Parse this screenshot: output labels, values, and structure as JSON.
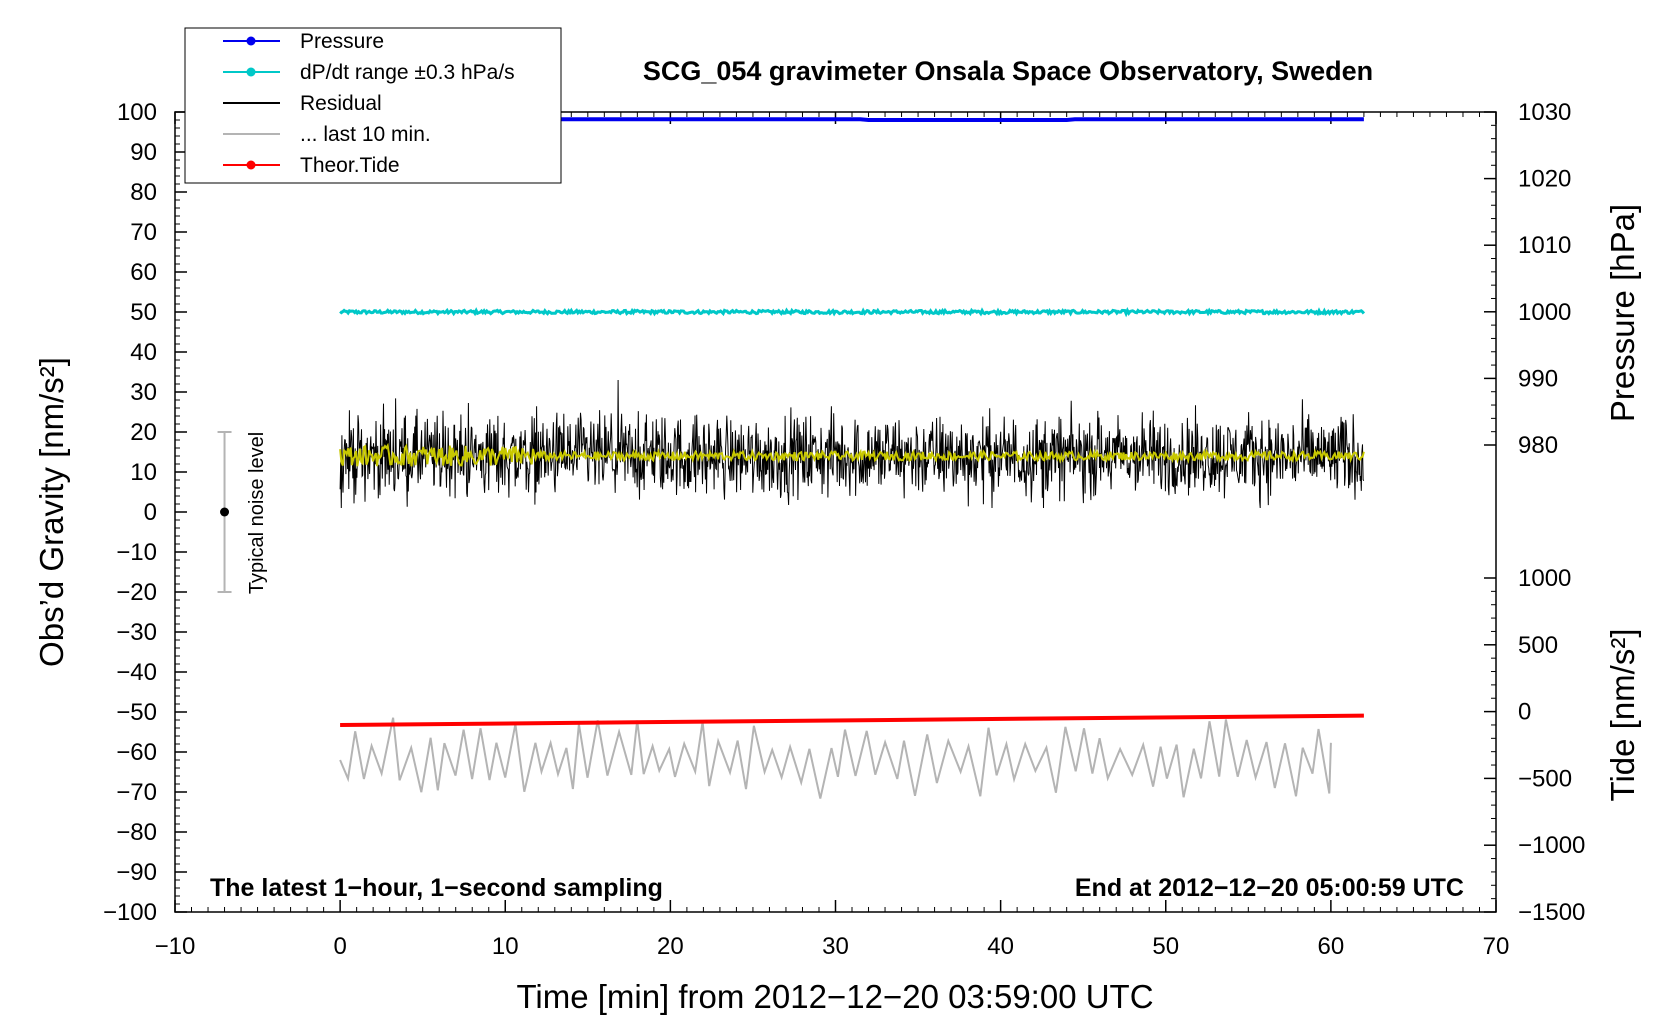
{
  "chart_data": {
    "type": "line",
    "title": "SCG_054 gravimeter Onsala Space Observatory, Sweden",
    "xlabel": "Time [min] from 2012−12−20 03:59:00 UTC",
    "ylabel": "Obs’d Gravity [nm/s²]",
    "y2_upper_label": "Pressure [hPa]",
    "y2_lower_label": "Tide [nm/s²]",
    "xlim": [
      -10,
      70
    ],
    "ylim": [
      -100,
      100
    ],
    "pressure_axis_range": [
      980,
      1030
    ],
    "tide_axis_range": [
      -1500,
      1000
    ],
    "x_ticks": [
      "−10",
      "0",
      "10",
      "20",
      "30",
      "40",
      "50",
      "60",
      "70"
    ],
    "y_ticks": [
      "100",
      "90",
      "80",
      "70",
      "60",
      "50",
      "40",
      "30",
      "20",
      "10",
      "0",
      "−10",
      "−20",
      "−30",
      "−40",
      "−50",
      "−60",
      "−70",
      "−80",
      "−90",
      "−100"
    ],
    "pressure_ticks": [
      "1030",
      "1020",
      "1010",
      "1000",
      "990",
      "980"
    ],
    "tide_ticks": [
      "1000",
      "500",
      "0",
      "−500",
      "−1000",
      "−1500"
    ],
    "legend": {
      "placement": "top-left",
      "entries": [
        {
          "label": "Pressure",
          "color": "#0000ee",
          "marker": true
        },
        {
          "label": "dP/dt range ±0.3 hPa/s",
          "color": "#00c8c8",
          "marker": true
        },
        {
          "label": "Residual",
          "color": "#000000",
          "marker": false
        },
        {
          "label": "... last 10 min.",
          "color": "#b4b4b4",
          "marker": false
        },
        {
          "label": "Theor.Tide",
          "color": "#ff0000",
          "marker": true
        }
      ]
    },
    "series": [
      {
        "name": "Pressure",
        "color": "#0000ee",
        "axis": "pressure",
        "x": [
          0,
          31.5,
          32,
          44,
          44.5,
          62
        ],
        "values": [
          1028.9,
          1028.9,
          1028.8,
          1028.8,
          1028.9,
          1028.9
        ]
      },
      {
        "name": "dP/dt range ±0.3 hPa/s",
        "color": "#00c8c8",
        "axis": "gravity",
        "x": [
          0,
          62
        ],
        "values": [
          50,
          50
        ]
      },
      {
        "name": "Residual",
        "color": "#000000",
        "axis": "gravity",
        "x": [
          0,
          62
        ],
        "mean": 14,
        "range": [
          1,
          33
        ]
      },
      {
        "name": "Residual (smoothed)",
        "color": "#c8c800",
        "axis": "gravity",
        "x": [
          0,
          62
        ],
        "mean": 14,
        "range": [
          11,
          17
        ]
      },
      {
        "name": "... last 10 min.",
        "color": "#b4b4b4",
        "axis": "gravity",
        "x": [
          0,
          60
        ],
        "mean": -62,
        "range": [
          -73,
          -51
        ]
      },
      {
        "name": "Theor.Tide",
        "color": "#ff0000",
        "axis": "tide",
        "x": [
          0,
          62
        ],
        "values": [
          -100,
          -30
        ]
      }
    ],
    "noise_level": {
      "label": "Typical noise level",
      "x": -7,
      "center": 0,
      "range": [
        -20,
        20
      ]
    },
    "annotations": {
      "left": "The latest 1−hour, 1−second sampling",
      "right": "End at 2012−12−20 05:00:59 UTC"
    },
    "grid": false
  }
}
